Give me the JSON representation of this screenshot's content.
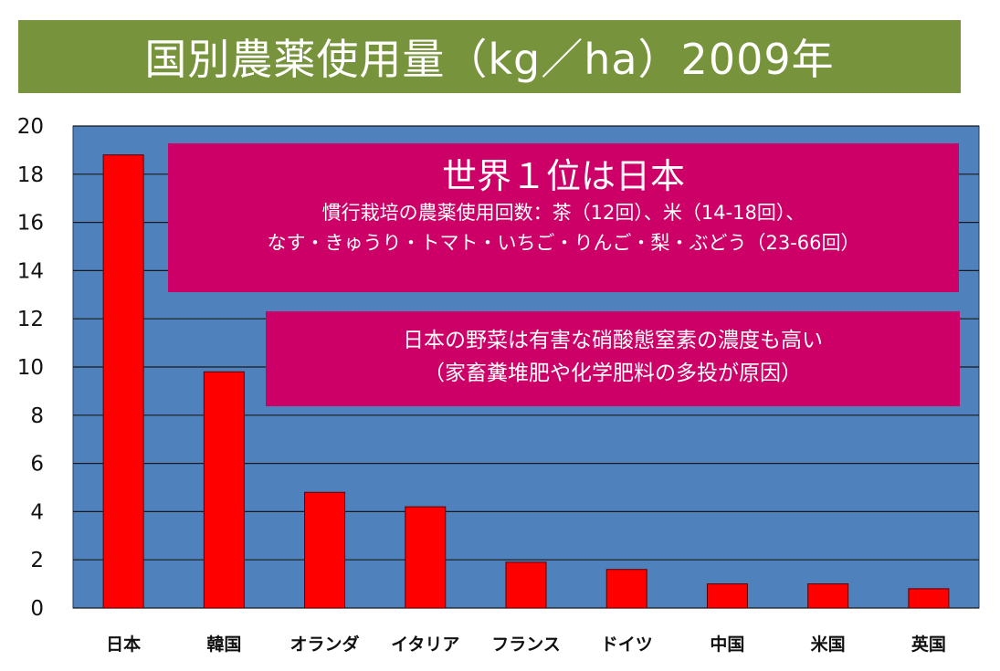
{
  "title": "国別農薬使用量（kg／ha）2009年",
  "colors": {
    "title_bg": "#77933c",
    "plot_bg": "#4f81bd",
    "bar": "#ff0000",
    "callout_bg": "#cc0066"
  },
  "callout_main": {
    "headline": "世界１位は日本",
    "line1": "慣行栽培の農薬使用回数：茶（12回）、米（14-18回）、",
    "line2": "なす・きゅうり・トマト・いちご・りんご・梨・ぶどう（23-66回）"
  },
  "callout_note": {
    "line1": "日本の野菜は有害な硝酸態窒素の濃度も高い",
    "line2": "（家畜糞堆肥や化学肥料の多投が原因）"
  },
  "chart_data": {
    "type": "bar",
    "categories": [
      "日本",
      "韓国",
      "オランダ",
      "イタリア",
      "フランス",
      "ドイツ",
      "中国",
      "米国",
      "英国"
    ],
    "values": [
      18.8,
      9.8,
      4.8,
      4.2,
      1.9,
      1.6,
      1.0,
      1.0,
      0.8
    ],
    "ylim": [
      0,
      20
    ],
    "yticks": [
      0,
      2,
      4,
      6,
      8,
      10,
      12,
      14,
      16,
      18,
      20
    ],
    "grid": true,
    "legend": "none"
  }
}
